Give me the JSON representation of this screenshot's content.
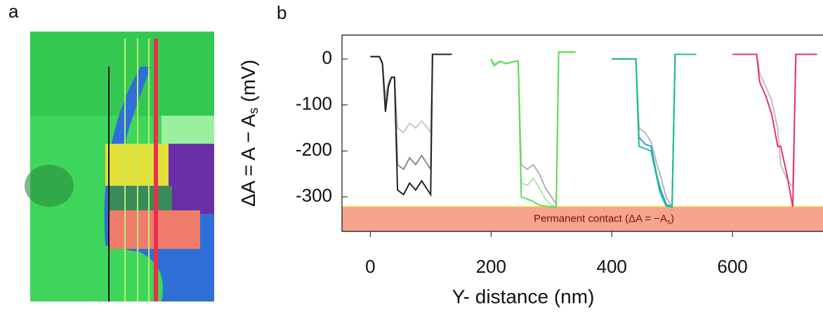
{
  "panel_labels": [
    "a",
    "b"
  ],
  "chart_data": {
    "type": "line",
    "xlabel": "Y- distance (nm)",
    "ylabel": {
      "main": "ΔA = A − A",
      "sub": "s",
      "end": " (mV)"
    },
    "xlim": [
      -47,
      750
    ],
    "ylim": [
      -375,
      52
    ],
    "xticks": [
      0,
      200,
      400,
      600
    ],
    "yticks": [
      0,
      -100,
      -200,
      -300
    ],
    "band": {
      "from": -322,
      "to": -375,
      "color": "#f6a48e",
      "edge_color": "#f5c04a",
      "label": "Permanent contact (ΔA = −A",
      "label_sub": "s",
      "label_end": ")"
    },
    "series": [
      {
        "color": "#c8c8c8",
        "x": [
          0,
          15,
          20,
          25,
          30,
          35,
          40,
          45,
          55,
          65,
          75,
          85,
          95,
          100,
          103,
          110,
          135
        ],
        "values": [
          5,
          5,
          -5,
          -80,
          -50,
          -40,
          -40,
          -150,
          -160,
          -140,
          -150,
          -135,
          -150,
          -160,
          10,
          10,
          10
        ]
      },
      {
        "color": "#8a8a8a",
        "x": [
          0,
          15,
          20,
          25,
          30,
          35,
          40,
          45,
          55,
          65,
          75,
          85,
          95,
          100,
          103,
          110,
          135
        ],
        "values": [
          5,
          5,
          -10,
          -100,
          -55,
          -40,
          -40,
          -230,
          -240,
          -215,
          -230,
          -210,
          -230,
          -240,
          10,
          10,
          10
        ]
      },
      {
        "color": "#222222",
        "x": [
          0,
          15,
          20,
          25,
          30,
          35,
          40,
          45,
          55,
          65,
          75,
          85,
          95,
          100,
          103,
          110,
          135
        ],
        "values": [
          5,
          5,
          -10,
          -115,
          -60,
          -40,
          -40,
          -285,
          -295,
          -270,
          -285,
          -265,
          -285,
          -295,
          10,
          10,
          10
        ]
      },
      {
        "color": "#b0b0b0",
        "x": [
          200,
          205,
          215,
          225,
          240,
          245,
          250,
          260,
          270,
          280,
          290,
          300,
          308,
          312,
          320,
          340
        ],
        "values": [
          0,
          -15,
          -5,
          -10,
          -5,
          -5,
          -230,
          -240,
          -230,
          -250,
          -280,
          -300,
          -315,
          15,
          15,
          15
        ]
      },
      {
        "color": "#a8e8a0",
        "x": [
          200,
          205,
          215,
          225,
          240,
          245,
          250,
          260,
          270,
          280,
          290,
          300,
          308,
          312,
          320,
          340
        ],
        "values": [
          0,
          -10,
          -5,
          -10,
          -5,
          -5,
          -270,
          -275,
          -260,
          -280,
          -305,
          -318,
          -322,
          15,
          15,
          15
        ]
      },
      {
        "color": "#5fdc5a",
        "x": [
          200,
          205,
          215,
          225,
          240,
          245,
          250,
          260,
          270,
          280,
          290,
          300,
          308,
          312,
          320,
          340
        ],
        "values": [
          0,
          -15,
          -5,
          -10,
          -5,
          -5,
          -300,
          -305,
          -310,
          -318,
          -320,
          -322,
          -322,
          15,
          15,
          15
        ]
      },
      {
        "color": "#b8b8b8",
        "x": [
          400,
          420,
          440,
          445,
          455,
          465,
          475,
          480,
          490,
          500,
          505,
          510,
          540
        ],
        "values": [
          0,
          0,
          0,
          -150,
          -160,
          -180,
          -230,
          -250,
          -300,
          -322,
          10,
          10,
          10
        ]
      },
      {
        "color": "#2a9fd6",
        "x": [
          400,
          420,
          440,
          445,
          455,
          465,
          475,
          480,
          490,
          500,
          505,
          510,
          540
        ],
        "values": [
          0,
          0,
          0,
          -170,
          -185,
          -190,
          -255,
          -280,
          -315,
          -322,
          10,
          10,
          10
        ]
      },
      {
        "color": "#1bbf8a",
        "x": [
          400,
          420,
          440,
          445,
          455,
          465,
          475,
          480,
          490,
          500,
          505,
          510,
          540
        ],
        "values": [
          0,
          0,
          0,
          -190,
          -195,
          -200,
          -260,
          -290,
          -320,
          -322,
          10,
          10,
          10
        ]
      },
      {
        "color": "#c0c0c0",
        "x": [
          600,
          620,
          640,
          645,
          655,
          665,
          675,
          680,
          690,
          700,
          705,
          710,
          740
        ],
        "values": [
          10,
          10,
          10,
          -30,
          -60,
          -90,
          -150,
          -230,
          -260,
          -280,
          10,
          10,
          10
        ]
      },
      {
        "color": "#e8306a",
        "x": [
          600,
          620,
          640,
          645,
          655,
          665,
          675,
          680,
          690,
          700,
          705,
          710,
          740
        ],
        "values": [
          10,
          10,
          10,
          -50,
          -80,
          -120,
          -190,
          -190,
          -250,
          -322,
          10,
          10,
          10
        ]
      }
    ]
  }
}
